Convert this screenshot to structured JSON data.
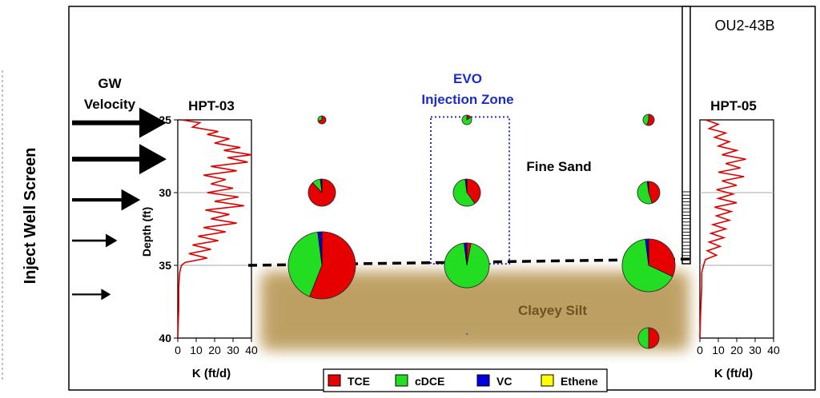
{
  "side_label": "Inject Well Screen",
  "well_id": "OU2-43B",
  "gw_velocity": {
    "label_line1": "GW",
    "label_line2": "Velocity",
    "arrows": [
      {
        "depth": 25.2,
        "strength": 1.0
      },
      {
        "depth": 27.7,
        "strength": 1.0
      },
      {
        "depth": 30.5,
        "strength": 0.6
      },
      {
        "depth": 33.3,
        "strength": 0.25
      },
      {
        "depth": 37.0,
        "strength": 0.15
      }
    ]
  },
  "injection_zone": {
    "line1": "EVO",
    "line2": "Injection Zone",
    "top_depth": 24.8,
    "bottom_depth": 34.9
  },
  "zones": {
    "fine_sand": "Fine Sand",
    "clayey_silt": "Clayey Silt"
  },
  "depth_axis": {
    "label": "Depth (ft)",
    "ticks": [
      25,
      30,
      35,
      40
    ],
    "min": 24,
    "max": 41
  },
  "hpt_left": {
    "title": "HPT-03",
    "xlabel": "K (ft/d)",
    "xticks": [
      0,
      10,
      20,
      30,
      40
    ],
    "xmax": 40,
    "profile": [
      [
        25.0,
        2
      ],
      [
        25.2,
        12
      ],
      [
        25.5,
        8
      ],
      [
        25.8,
        22
      ],
      [
        26.0,
        16
      ],
      [
        26.3,
        28
      ],
      [
        26.6,
        20
      ],
      [
        26.9,
        34
      ],
      [
        27.1,
        25
      ],
      [
        27.4,
        40
      ],
      [
        27.6,
        27
      ],
      [
        27.9,
        38
      ],
      [
        28.2,
        18
      ],
      [
        28.5,
        32
      ],
      [
        28.8,
        14
      ],
      [
        29.1,
        26
      ],
      [
        29.4,
        18
      ],
      [
        29.7,
        30
      ],
      [
        30.0,
        16
      ],
      [
        30.3,
        33
      ],
      [
        30.6,
        20
      ],
      [
        30.9,
        36
      ],
      [
        31.2,
        15
      ],
      [
        31.5,
        28
      ],
      [
        31.8,
        18
      ],
      [
        32.1,
        32
      ],
      [
        32.4,
        14
      ],
      [
        32.7,
        26
      ],
      [
        33.0,
        11
      ],
      [
        33.3,
        22
      ],
      [
        33.6,
        8
      ],
      [
        33.9,
        18
      ],
      [
        34.2,
        6
      ],
      [
        34.5,
        16
      ],
      [
        34.8,
        4
      ],
      [
        35.0,
        2
      ],
      [
        35.5,
        1
      ],
      [
        36.5,
        0.5
      ],
      [
        38.0,
        0.5
      ],
      [
        40.0,
        0
      ]
    ]
  },
  "hpt_right": {
    "title": "HPT-05",
    "xlabel": "K (ft/d)",
    "xticks": [
      0,
      10,
      20,
      30,
      40
    ],
    "xmax": 40,
    "profile": [
      [
        25.0,
        3
      ],
      [
        25.3,
        10
      ],
      [
        25.6,
        5
      ],
      [
        25.9,
        14
      ],
      [
        26.2,
        8
      ],
      [
        26.5,
        16
      ],
      [
        26.8,
        10
      ],
      [
        27.1,
        20
      ],
      [
        27.4,
        12
      ],
      [
        27.7,
        25
      ],
      [
        28.0,
        14
      ],
      [
        28.3,
        22
      ],
      [
        28.6,
        10
      ],
      [
        28.9,
        24
      ],
      [
        29.2,
        12
      ],
      [
        29.5,
        20
      ],
      [
        29.8,
        9
      ],
      [
        30.1,
        18
      ],
      [
        30.4,
        10
      ],
      [
        30.7,
        20
      ],
      [
        31.0,
        8
      ],
      [
        31.3,
        17
      ],
      [
        31.6,
        9
      ],
      [
        31.9,
        16
      ],
      [
        32.2,
        7
      ],
      [
        32.5,
        14
      ],
      [
        32.8,
        6
      ],
      [
        33.1,
        13
      ],
      [
        33.4,
        5
      ],
      [
        33.7,
        11
      ],
      [
        34.0,
        4
      ],
      [
        34.3,
        9
      ],
      [
        34.6,
        3
      ],
      [
        35.0,
        2
      ],
      [
        35.5,
        1
      ],
      [
        36.5,
        1
      ],
      [
        38.0,
        0.5
      ],
      [
        40.0,
        0
      ]
    ]
  },
  "legend": [
    {
      "label": "TCE",
      "color": "#e60000"
    },
    {
      "label": "cDCE",
      "color": "#22dd22"
    },
    {
      "label": "VC",
      "color": "#0000dd"
    },
    {
      "label": "Ethene",
      "color": "#ffff00"
    }
  ],
  "pies": [
    {
      "col": 0,
      "depth": 25.0,
      "size": 5,
      "fractions": [
        0.7,
        0.3,
        0,
        0
      ]
    },
    {
      "col": 1,
      "depth": 25.0,
      "size": 6,
      "fractions": [
        0.15,
        0.85,
        0,
        0
      ]
    },
    {
      "col": 2,
      "depth": 25.0,
      "size": 7,
      "fractions": [
        0.55,
        0.45,
        0,
        0
      ]
    },
    {
      "col": 0,
      "depth": 30.0,
      "size": 17,
      "fractions": [
        0.88,
        0.1,
        0.02,
        0
      ]
    },
    {
      "col": 1,
      "depth": 30.0,
      "size": 17,
      "fractions": [
        0.4,
        0.58,
        0.02,
        0
      ]
    },
    {
      "col": 2,
      "depth": 30.0,
      "size": 14,
      "fractions": [
        0.45,
        0.53,
        0.02,
        0
      ]
    },
    {
      "col": 0,
      "depth": 35.0,
      "size": 42,
      "fractions": [
        0.56,
        0.42,
        0.02,
        0
      ]
    },
    {
      "col": 1,
      "depth": 35.0,
      "size": 28,
      "fractions": [
        0.03,
        0.95,
        0.02,
        0
      ]
    },
    {
      "col": 2,
      "depth": 35.0,
      "size": 33,
      "fractions": [
        0.32,
        0.66,
        0.02,
        0
      ]
    },
    {
      "col": 2,
      "depth": 40.0,
      "size": 13,
      "fractions": [
        0.5,
        0.5,
        0,
        0
      ]
    }
  ],
  "colors": {
    "clay": "#bfa26a",
    "clay_light": "#e6d7b1",
    "injection_border": "#2233cc",
    "injection_text": "#1a2ccc",
    "hpt_line": "#e00000"
  }
}
